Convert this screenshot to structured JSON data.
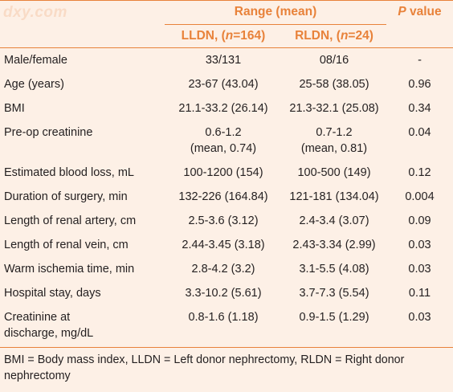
{
  "watermark": "dxy.com",
  "header": {
    "range_title": "Range (mean)",
    "p_value_p": "P",
    "p_value_rest": " value",
    "lldn_prefix": "LLDN, (",
    "lldn_n": "n",
    "lldn_suffix": "=164)",
    "rldn_prefix": "RLDN, (",
    "rldn_n": "n",
    "rldn_suffix": "=24)"
  },
  "rows": [
    {
      "label": "Male/female",
      "label2": "",
      "lldn": "33/131",
      "lldn2": "",
      "rldn": "08/16",
      "rldn2": "",
      "p": "-"
    },
    {
      "label": "Age (years)",
      "label2": "",
      "lldn": "23-67 (43.04)",
      "lldn2": "",
      "rldn": "25-58 (38.05)",
      "rldn2": "",
      "p": "0.96"
    },
    {
      "label": "BMI",
      "label2": "",
      "lldn": "21.1-33.2 (26.14)",
      "lldn2": "",
      "rldn": "21.3-32.1 (25.08)",
      "rldn2": "",
      "p": "0.34"
    },
    {
      "label": "Pre-op creatinine",
      "label2": "",
      "lldn": "0.6-1.2",
      "lldn2": "(mean, 0.74)",
      "rldn": "0.7-1.2",
      "rldn2": "(mean, 0.81)",
      "p": "0.04"
    },
    {
      "label": "Estimated blood loss, mL",
      "label2": "",
      "lldn": "100-1200 (154)",
      "lldn2": "",
      "rldn": "100-500 (149)",
      "rldn2": "",
      "p": "0.12"
    },
    {
      "label": "Duration of surgery, min",
      "label2": "",
      "lldn": "132-226 (164.84)",
      "lldn2": "",
      "rldn": "121-181 (134.04)",
      "rldn2": "",
      "p": "0.004"
    },
    {
      "label": "Length of renal artery, cm",
      "label2": "",
      "lldn": "2.5-3.6 (3.12)",
      "lldn2": "",
      "rldn": "2.4-3.4 (3.07)",
      "rldn2": "",
      "p": "0.09"
    },
    {
      "label": "Length of renal vein, cm",
      "label2": "",
      "lldn": "2.44-3.45 (3.18)",
      "lldn2": "",
      "rldn": "2.43-3.34 (2.99)",
      "rldn2": "",
      "p": "0.03"
    },
    {
      "label": "Warm ischemia time, min",
      "label2": "",
      "lldn": "2.8-4.2 (3.2)",
      "lldn2": "",
      "rldn": "3.1-5.5 (4.08)",
      "rldn2": "",
      "p": "0.03"
    },
    {
      "label": "Hospital stay, days",
      "label2": "",
      "lldn": "3.3-10.2 (5.61)",
      "lldn2": "",
      "rldn": "3.7-7.3 (5.54)",
      "rldn2": "",
      "p": "0.11"
    },
    {
      "label": "Creatinine at",
      "label2": "discharge, mg/dL",
      "lldn": "0.8-1.6 (1.18)",
      "lldn2": "",
      "rldn": "0.9-1.5 (1.29)",
      "rldn2": "",
      "p": "0.03"
    }
  ],
  "footnote": "BMI = Body mass index, LLDN = Left donor nephrectomy, RLDN = Right donor nephrectomy",
  "colors": {
    "accent": "#e8823a",
    "background": "#fdf0e6",
    "text": "#231f20"
  }
}
